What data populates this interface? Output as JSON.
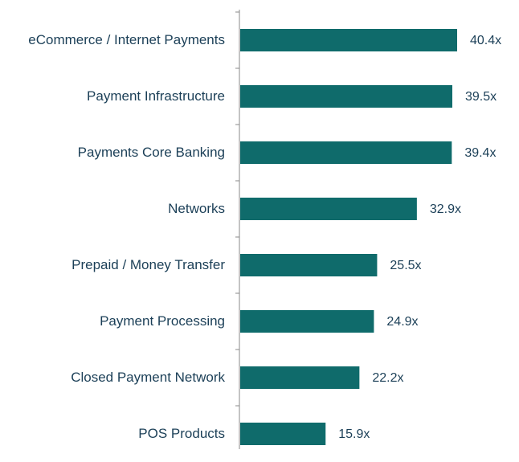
{
  "chart_data": {
    "type": "bar",
    "orientation": "horizontal",
    "categories": [
      "eCommerce / Internet Payments",
      "Payment Infrastructure",
      "Payments Core Banking",
      "Networks",
      "Prepaid / Money Transfer",
      "Payment Processing",
      "Closed Payment Network",
      "POS Products"
    ],
    "values": [
      40.4,
      39.5,
      39.4,
      32.9,
      25.5,
      24.9,
      22.2,
      15.9
    ],
    "value_labels": [
      "40.4x",
      "39.5x",
      "39.4x",
      "32.9x",
      "25.5x",
      "24.9x",
      "22.2x",
      "15.9x"
    ],
    "color": "#0f6b6b"
  }
}
